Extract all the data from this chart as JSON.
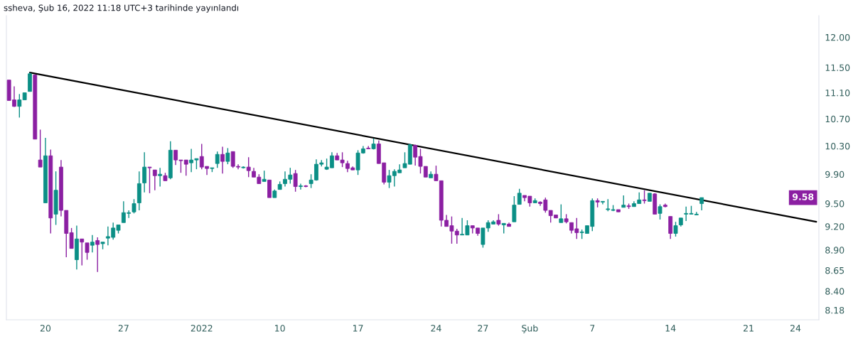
{
  "chart_data": {
    "type": "candlestick",
    "title": "ssheva, Şub 16, 2022 11:18 UTC+3 tarihinde yayınlandı",
    "categories": [
      null,
      null,
      null,
      null,
      null,
      null,
      null,
      "20",
      null,
      null,
      null,
      null,
      null,
      null,
      null,
      null,
      null,
      null,
      null,
      null,
      null,
      null,
      "27",
      null,
      null,
      null,
      null,
      null,
      null,
      null,
      null,
      null,
      null,
      null,
      null,
      null,
      null,
      "2022",
      null,
      null,
      null,
      null,
      null,
      null,
      null,
      null,
      null,
      null,
      null,
      null,
      null,
      null,
      "10",
      null,
      null,
      null,
      null,
      null,
      null,
      null,
      null,
      null,
      null,
      null,
      null,
      null,
      null,
      "17",
      null,
      null,
      null,
      null,
      null,
      null,
      null,
      null,
      null,
      null,
      null,
      null,
      null,
      null,
      "24",
      null,
      null,
      null,
      null,
      null,
      null,
      null,
      null,
      "27",
      null,
      null,
      null,
      null,
      null,
      null,
      null,
      null,
      "Şub",
      null,
      null,
      null,
      null,
      null,
      null,
      null,
      null,
      null,
      null,
      null,
      "7",
      null,
      null,
      null,
      null,
      null,
      null,
      null,
      null,
      null,
      null,
      null,
      null,
      null,
      null,
      "14",
      null,
      null,
      null,
      null,
      null,
      null,
      null,
      null,
      null,
      null,
      null,
      null,
      null,
      null,
      "21",
      null,
      null,
      null,
      null,
      null,
      null,
      null,
      null,
      "24",
      null,
      null,
      null,
      null
    ],
    "ohlc": [
      [
        11.3,
        11.3,
        10.98,
        10.98
      ],
      [
        10.99,
        11.2,
        10.88,
        10.89
      ],
      [
        10.89,
        11.08,
        10.72,
        10.99
      ],
      [
        10.99,
        11.1,
        10.99,
        11.1
      ],
      [
        11.12,
        11.42,
        11.12,
        11.4
      ],
      [
        11.38,
        11.39,
        10.4,
        10.4
      ],
      [
        10.1,
        10.54,
        10.0,
        10.0
      ],
      [
        9.51,
        10.42,
        9.51,
        10.16
      ],
      [
        10.16,
        10.25,
        9.11,
        9.31
      ],
      [
        9.36,
        9.94,
        9.22,
        9.68
      ],
      [
        10.0,
        10.1,
        9.33,
        9.41
      ],
      [
        9.41,
        9.41,
        8.81,
        9.11
      ],
      [
        9.12,
        9.18,
        8.92,
        8.92
      ],
      [
        8.78,
        9.21,
        8.66,
        9.04
      ],
      [
        9.04,
        9.04,
        8.71,
        9.0
      ],
      [
        8.99,
        8.99,
        8.78,
        8.87
      ],
      [
        8.96,
        9.09,
        8.87,
        9.0
      ],
      [
        9.02,
        9.06,
        8.63,
        8.97
      ],
      [
        8.98,
        9.0,
        8.91,
        9.0
      ],
      [
        9.05,
        9.2,
        8.96,
        9.07
      ],
      [
        9.06,
        9.25,
        9.03,
        9.18
      ],
      [
        9.15,
        9.22,
        9.11,
        9.22
      ],
      [
        9.25,
        9.53,
        9.25,
        9.38
      ],
      [
        9.37,
        9.41,
        9.31,
        9.38
      ],
      [
        9.39,
        9.56,
        9.37,
        9.5
      ],
      [
        9.51,
        9.94,
        9.41,
        9.77
      ],
      [
        9.78,
        10.21,
        9.65,
        10.0
      ],
      [
        10.0,
        10.0,
        9.64,
        9.99
      ],
      [
        9.96,
        9.96,
        9.68,
        9.88
      ],
      [
        9.88,
        9.99,
        9.73,
        9.9
      ],
      [
        9.88,
        9.92,
        9.81,
        9.81
      ],
      [
        9.85,
        10.37,
        9.83,
        10.24
      ],
      [
        10.24,
        10.24,
        10.03,
        10.1
      ],
      [
        10.1,
        10.1,
        9.92,
        10.09
      ],
      [
        10.1,
        10.1,
        9.88,
        10.04
      ],
      [
        10.06,
        10.26,
        9.93,
        10.1
      ],
      [
        10.1,
        10.12,
        9.97,
        10.12
      ],
      [
        10.15,
        10.33,
        9.97,
        10.0
      ],
      [
        10.01,
        10.01,
        9.89,
        9.98
      ],
      [
        9.98,
        9.99,
        9.93,
        9.99
      ],
      [
        10.05,
        10.22,
        9.99,
        10.18
      ],
      [
        10.18,
        10.29,
        9.91,
        10.08
      ],
      [
        10.08,
        10.27,
        10.04,
        10.2
      ],
      [
        10.22,
        10.22,
        9.99,
        10.01
      ],
      [
        10.01,
        10.04,
        9.97,
        10.0
      ],
      [
        9.99,
        10.01,
        9.98,
        10.0
      ],
      [
        10.0,
        10.14,
        9.86,
        9.95
      ],
      [
        9.94,
        9.99,
        9.86,
        9.86
      ],
      [
        9.86,
        9.9,
        9.77,
        9.77
      ],
      [
        9.8,
        9.95,
        9.8,
        9.83
      ],
      [
        9.82,
        9.82,
        9.58,
        9.58
      ],
      [
        9.58,
        9.69,
        9.58,
        9.67
      ],
      [
        9.69,
        9.8,
        9.69,
        9.76
      ],
      [
        9.77,
        9.94,
        9.73,
        9.83
      ],
      [
        9.83,
        9.99,
        9.77,
        9.89
      ],
      [
        9.91,
        9.96,
        9.66,
        9.73
      ],
      [
        9.73,
        9.77,
        9.69,
        9.74
      ],
      [
        9.74,
        9.75,
        9.72,
        9.73
      ],
      [
        9.77,
        9.9,
        9.71,
        9.82
      ],
      [
        9.82,
        10.11,
        9.81,
        10.04
      ],
      [
        10.04,
        10.1,
        10.01,
        10.06
      ],
      [
        9.97,
        10.12,
        9.96,
        10.0
      ],
      [
        9.99,
        10.21,
        9.99,
        10.16
      ],
      [
        10.16,
        10.2,
        10.1,
        10.1
      ],
      [
        10.1,
        10.21,
        10.0,
        10.06
      ],
      [
        10.05,
        10.09,
        9.93,
        9.98
      ],
      [
        9.99,
        10.01,
        9.96,
        9.96
      ],
      [
        9.96,
        10.24,
        9.89,
        10.2
      ],
      [
        10.2,
        10.3,
        10.19,
        10.26
      ],
      [
        10.27,
        10.3,
        10.26,
        10.26
      ],
      [
        10.26,
        10.41,
        10.25,
        10.33
      ],
      [
        10.33,
        10.38,
        10.05,
        10.05
      ],
      [
        10.06,
        10.06,
        9.76,
        9.79
      ],
      [
        9.79,
        9.96,
        9.71,
        9.88
      ],
      [
        9.88,
        9.97,
        9.73,
        9.94
      ],
      [
        9.92,
        10.04,
        9.92,
        9.96
      ],
      [
        9.99,
        10.21,
        9.99,
        10.05
      ],
      [
        10.04,
        10.33,
        10.04,
        10.32
      ],
      [
        10.31,
        10.32,
        10.02,
        10.14
      ],
      [
        10.15,
        10.26,
        9.91,
        10.01
      ],
      [
        10.01,
        10.01,
        9.86,
        9.86
      ],
      [
        9.85,
        9.94,
        9.85,
        9.9
      ],
      [
        9.9,
        10.02,
        9.81,
        9.81
      ],
      [
        9.81,
        9.81,
        9.2,
        9.28
      ],
      [
        9.28,
        9.35,
        9.2,
        9.2
      ],
      [
        9.21,
        9.33,
        8.98,
        9.14
      ],
      [
        9.14,
        9.17,
        8.98,
        9.09
      ],
      [
        9.09,
        9.31,
        9.09,
        9.1
      ],
      [
        9.09,
        9.28,
        9.09,
        9.21
      ],
      [
        9.21,
        9.21,
        9.11,
        9.18
      ],
      [
        9.18,
        9.18,
        9.08,
        9.11
      ],
      [
        8.97,
        9.18,
        8.93,
        9.18
      ],
      [
        9.18,
        9.28,
        9.13,
        9.25
      ],
      [
        9.23,
        9.28,
        9.23,
        9.26
      ],
      [
        9.28,
        9.36,
        9.21,
        9.23
      ],
      [
        9.22,
        9.24,
        9.11,
        9.24
      ],
      [
        9.23,
        9.25,
        9.2,
        9.2
      ],
      [
        9.26,
        9.6,
        9.26,
        9.48
      ],
      [
        9.49,
        9.7,
        9.49,
        9.64
      ],
      [
        9.61,
        9.61,
        9.53,
        9.58
      ],
      [
        9.6,
        9.6,
        9.46,
        9.51
      ],
      [
        9.51,
        9.57,
        9.51,
        9.54
      ],
      [
        9.52,
        9.53,
        9.47,
        9.5
      ],
      [
        9.55,
        9.58,
        9.38,
        9.41
      ],
      [
        9.41,
        9.41,
        9.25,
        9.34
      ],
      [
        9.35,
        9.35,
        9.31,
        9.31
      ],
      [
        9.25,
        9.49,
        9.25,
        9.3
      ],
      [
        9.3,
        9.36,
        9.24,
        9.26
      ],
      [
        9.25,
        9.25,
        9.11,
        9.15
      ],
      [
        9.17,
        9.31,
        9.04,
        9.12
      ],
      [
        9.12,
        9.16,
        9.04,
        9.13
      ],
      [
        9.11,
        9.21,
        9.11,
        9.21
      ],
      [
        9.2,
        9.57,
        9.14,
        9.54
      ],
      [
        9.54,
        9.57,
        9.45,
        9.52
      ],
      [
        9.52,
        9.53,
        9.49,
        9.53
      ],
      [
        9.42,
        9.56,
        9.4,
        9.43
      ],
      [
        9.41,
        9.48,
        9.4,
        9.42
      ],
      [
        9.42,
        9.42,
        9.39,
        9.39
      ],
      [
        9.45,
        9.61,
        9.45,
        9.48
      ],
      [
        9.47,
        9.5,
        9.43,
        9.46
      ],
      [
        9.46,
        9.53,
        9.46,
        9.5
      ],
      [
        9.5,
        9.65,
        9.5,
        9.55
      ],
      [
        9.55,
        9.68,
        9.5,
        9.54
      ],
      [
        9.53,
        9.64,
        9.53,
        9.64
      ],
      [
        9.63,
        9.64,
        9.36,
        9.36
      ],
      [
        9.37,
        9.49,
        9.29,
        9.46
      ],
      [
        9.48,
        9.5,
        9.45,
        9.46
      ],
      [
        9.33,
        9.33,
        9.04,
        9.11
      ],
      [
        9.11,
        9.26,
        9.07,
        9.21
      ],
      [
        9.22,
        9.31,
        9.2,
        9.31
      ],
      [
        9.36,
        9.46,
        9.27,
        9.37
      ],
      [
        9.36,
        9.47,
        9.36,
        9.37
      ],
      [
        9.35,
        9.39,
        9.35,
        9.36
      ],
      [
        9.5,
        9.58,
        9.41,
        9.58
      ],
      null,
      null,
      null,
      null,
      null,
      null,
      null,
      null,
      null,
      null,
      null,
      null,
      null,
      null,
      null,
      null,
      null,
      null,
      null,
      null,
      null,
      null
    ],
    "colors": [
      "#8b1fa2",
      "#8b1fa2",
      "#0b8f86",
      "#0b8f86",
      "#0b8f86",
      "#8b1fa2",
      "#8b1fa2",
      "#0b8f86",
      "#8b1fa2",
      "#0b8f86",
      "#8b1fa2",
      "#8b1fa2",
      "#8b1fa2",
      "#0b8f86",
      "#8b1fa2",
      "#8b1fa2",
      "#0b8f86",
      "#8b1fa2",
      "#0b8f86",
      "#0b8f86",
      "#0b8f86",
      "#0b8f86",
      "#0b8f86",
      "#0b8f86",
      "#0b8f86",
      "#0b8f86",
      "#0b8f86",
      "#8b1fa2",
      "#8b1fa2",
      "#0b8f86",
      "#8b1fa2",
      "#0b8f86",
      "#8b1fa2",
      "#8b1fa2",
      "#8b1fa2",
      "#0b8f86",
      "#0b8f86",
      "#8b1fa2",
      "#8b1fa2",
      "#0b8f86",
      "#0b8f86",
      "#8b1fa2",
      "#0b8f86",
      "#8b1fa2",
      "#8b1fa2",
      "#0b8f86",
      "#8b1fa2",
      "#8b1fa2",
      "#8b1fa2",
      "#0b8f86",
      "#8b1fa2",
      "#0b8f86",
      "#0b8f86",
      "#0b8f86",
      "#0b8f86",
      "#8b1fa2",
      "#0b8f86",
      "#8b1fa2",
      "#0b8f86",
      "#0b8f86",
      "#0b8f86",
      "#0b8f86",
      "#0b8f86",
      "#8b1fa2",
      "#8b1fa2",
      "#8b1fa2",
      "#8b1fa2",
      "#0b8f86",
      "#0b8f86",
      "#8b1fa2",
      "#0b8f86",
      "#8b1fa2",
      "#8b1fa2",
      "#0b8f86",
      "#0b8f86",
      "#0b8f86",
      "#0b8f86",
      "#0b8f86",
      "#8b1fa2",
      "#8b1fa2",
      "#8b1fa2",
      "#0b8f86",
      "#8b1fa2",
      "#8b1fa2",
      "#8b1fa2",
      "#8b1fa2",
      "#8b1fa2",
      "#0b8f86",
      "#0b8f86",
      "#8b1fa2",
      "#8b1fa2",
      "#0b8f86",
      "#0b8f86",
      "#0b8f86",
      "#8b1fa2",
      "#0b8f86",
      "#8b1fa2",
      "#0b8f86",
      "#0b8f86",
      "#8b1fa2",
      "#8b1fa2",
      "#0b8f86",
      "#8b1fa2",
      "#8b1fa2",
      "#8b1fa2",
      "#8b1fa2",
      "#0b8f86",
      "#8b1fa2",
      "#8b1fa2",
      "#8b1fa2",
      "#0b8f86",
      "#0b8f86",
      "#0b8f86",
      "#8b1fa2",
      "#0b8f86",
      "#0b8f86",
      "#0b8f86",
      "#8b1fa2",
      "#0b8f86",
      "#8b1fa2",
      "#0b8f86",
      "#0b8f86",
      "#8b1fa2",
      "#0b8f86",
      "#8b1fa2",
      "#0b8f86",
      "#8b1fa2",
      "#8b1fa2",
      "#0b8f86",
      "#0b8f86",
      "#0b8f86",
      "#0b8f86",
      "#0b8f86",
      "#0b8f86",
      null,
      null,
      null,
      null,
      null,
      null,
      null,
      null,
      null,
      null,
      null,
      null,
      null,
      null,
      null,
      null,
      null,
      null,
      null,
      null,
      null,
      null
    ],
    "series": [
      {
        "type": "line",
        "color": "#000000",
        "values": [
          null,
          null,
          null,
          null,
          11.42,
          null,
          null,
          null,
          null,
          null,
          null,
          null,
          null,
          null,
          null,
          null,
          null,
          null,
          null,
          null,
          null,
          null,
          null,
          null,
          null,
          null,
          null,
          null,
          null,
          null,
          null,
          null,
          null,
          null,
          null,
          null,
          null,
          null,
          null,
          null,
          null,
          null,
          null,
          null,
          null,
          null,
          null,
          null,
          null,
          null,
          null,
          null,
          null,
          null,
          null,
          null,
          null,
          null,
          null,
          null,
          null,
          null,
          null,
          null,
          null,
          null,
          null,
          null,
          null,
          null,
          null,
          null,
          null,
          null,
          null,
          null,
          null,
          null,
          null,
          null,
          null,
          null,
          null,
          null,
          null,
          null,
          null,
          null,
          null,
          null,
          null,
          null,
          null,
          null,
          null,
          null,
          null,
          null,
          null,
          null,
          null,
          null,
          null,
          null,
          null,
          null,
          null,
          null,
          null,
          null,
          null,
          null,
          null,
          null,
          null,
          null,
          null,
          null,
          null,
          null,
          null,
          null,
          null,
          null,
          null,
          null,
          null,
          null,
          null,
          null,
          null,
          null,
          null,
          null,
          null,
          null,
          null,
          null,
          null,
          null,
          null,
          null,
          null,
          null,
          null,
          null,
          null,
          null,
          null,
          null,
          null,
          null,
          null,
          null,
          null,
          9.26
        ]
      }
    ],
    "log": true,
    "ylim": [
      8.07,
      12.37
    ],
    "yticks": [
      {
        "value": 12.0,
        "label": "12.00"
      },
      {
        "value": 11.5,
        "label": "11.50"
      },
      {
        "value": 11.1,
        "label": "11.10"
      },
      {
        "value": 10.7,
        "label": "10.70"
      },
      {
        "value": 10.3,
        "label": "10.30"
      },
      {
        "value": 9.9,
        "label": "9.90"
      },
      {
        "value": 9.5,
        "label": "9.50"
      },
      {
        "value": 9.2,
        "label": "9.20"
      },
      {
        "value": 8.9,
        "label": "8.90"
      },
      {
        "value": 8.65,
        "label": "8.65"
      },
      {
        "value": 8.4,
        "label": "8.40"
      },
      {
        "value": 8.18,
        "label": "8.18"
      }
    ],
    "annotations": [
      {
        "text": "9.58",
        "y": 9.58
      }
    ]
  }
}
